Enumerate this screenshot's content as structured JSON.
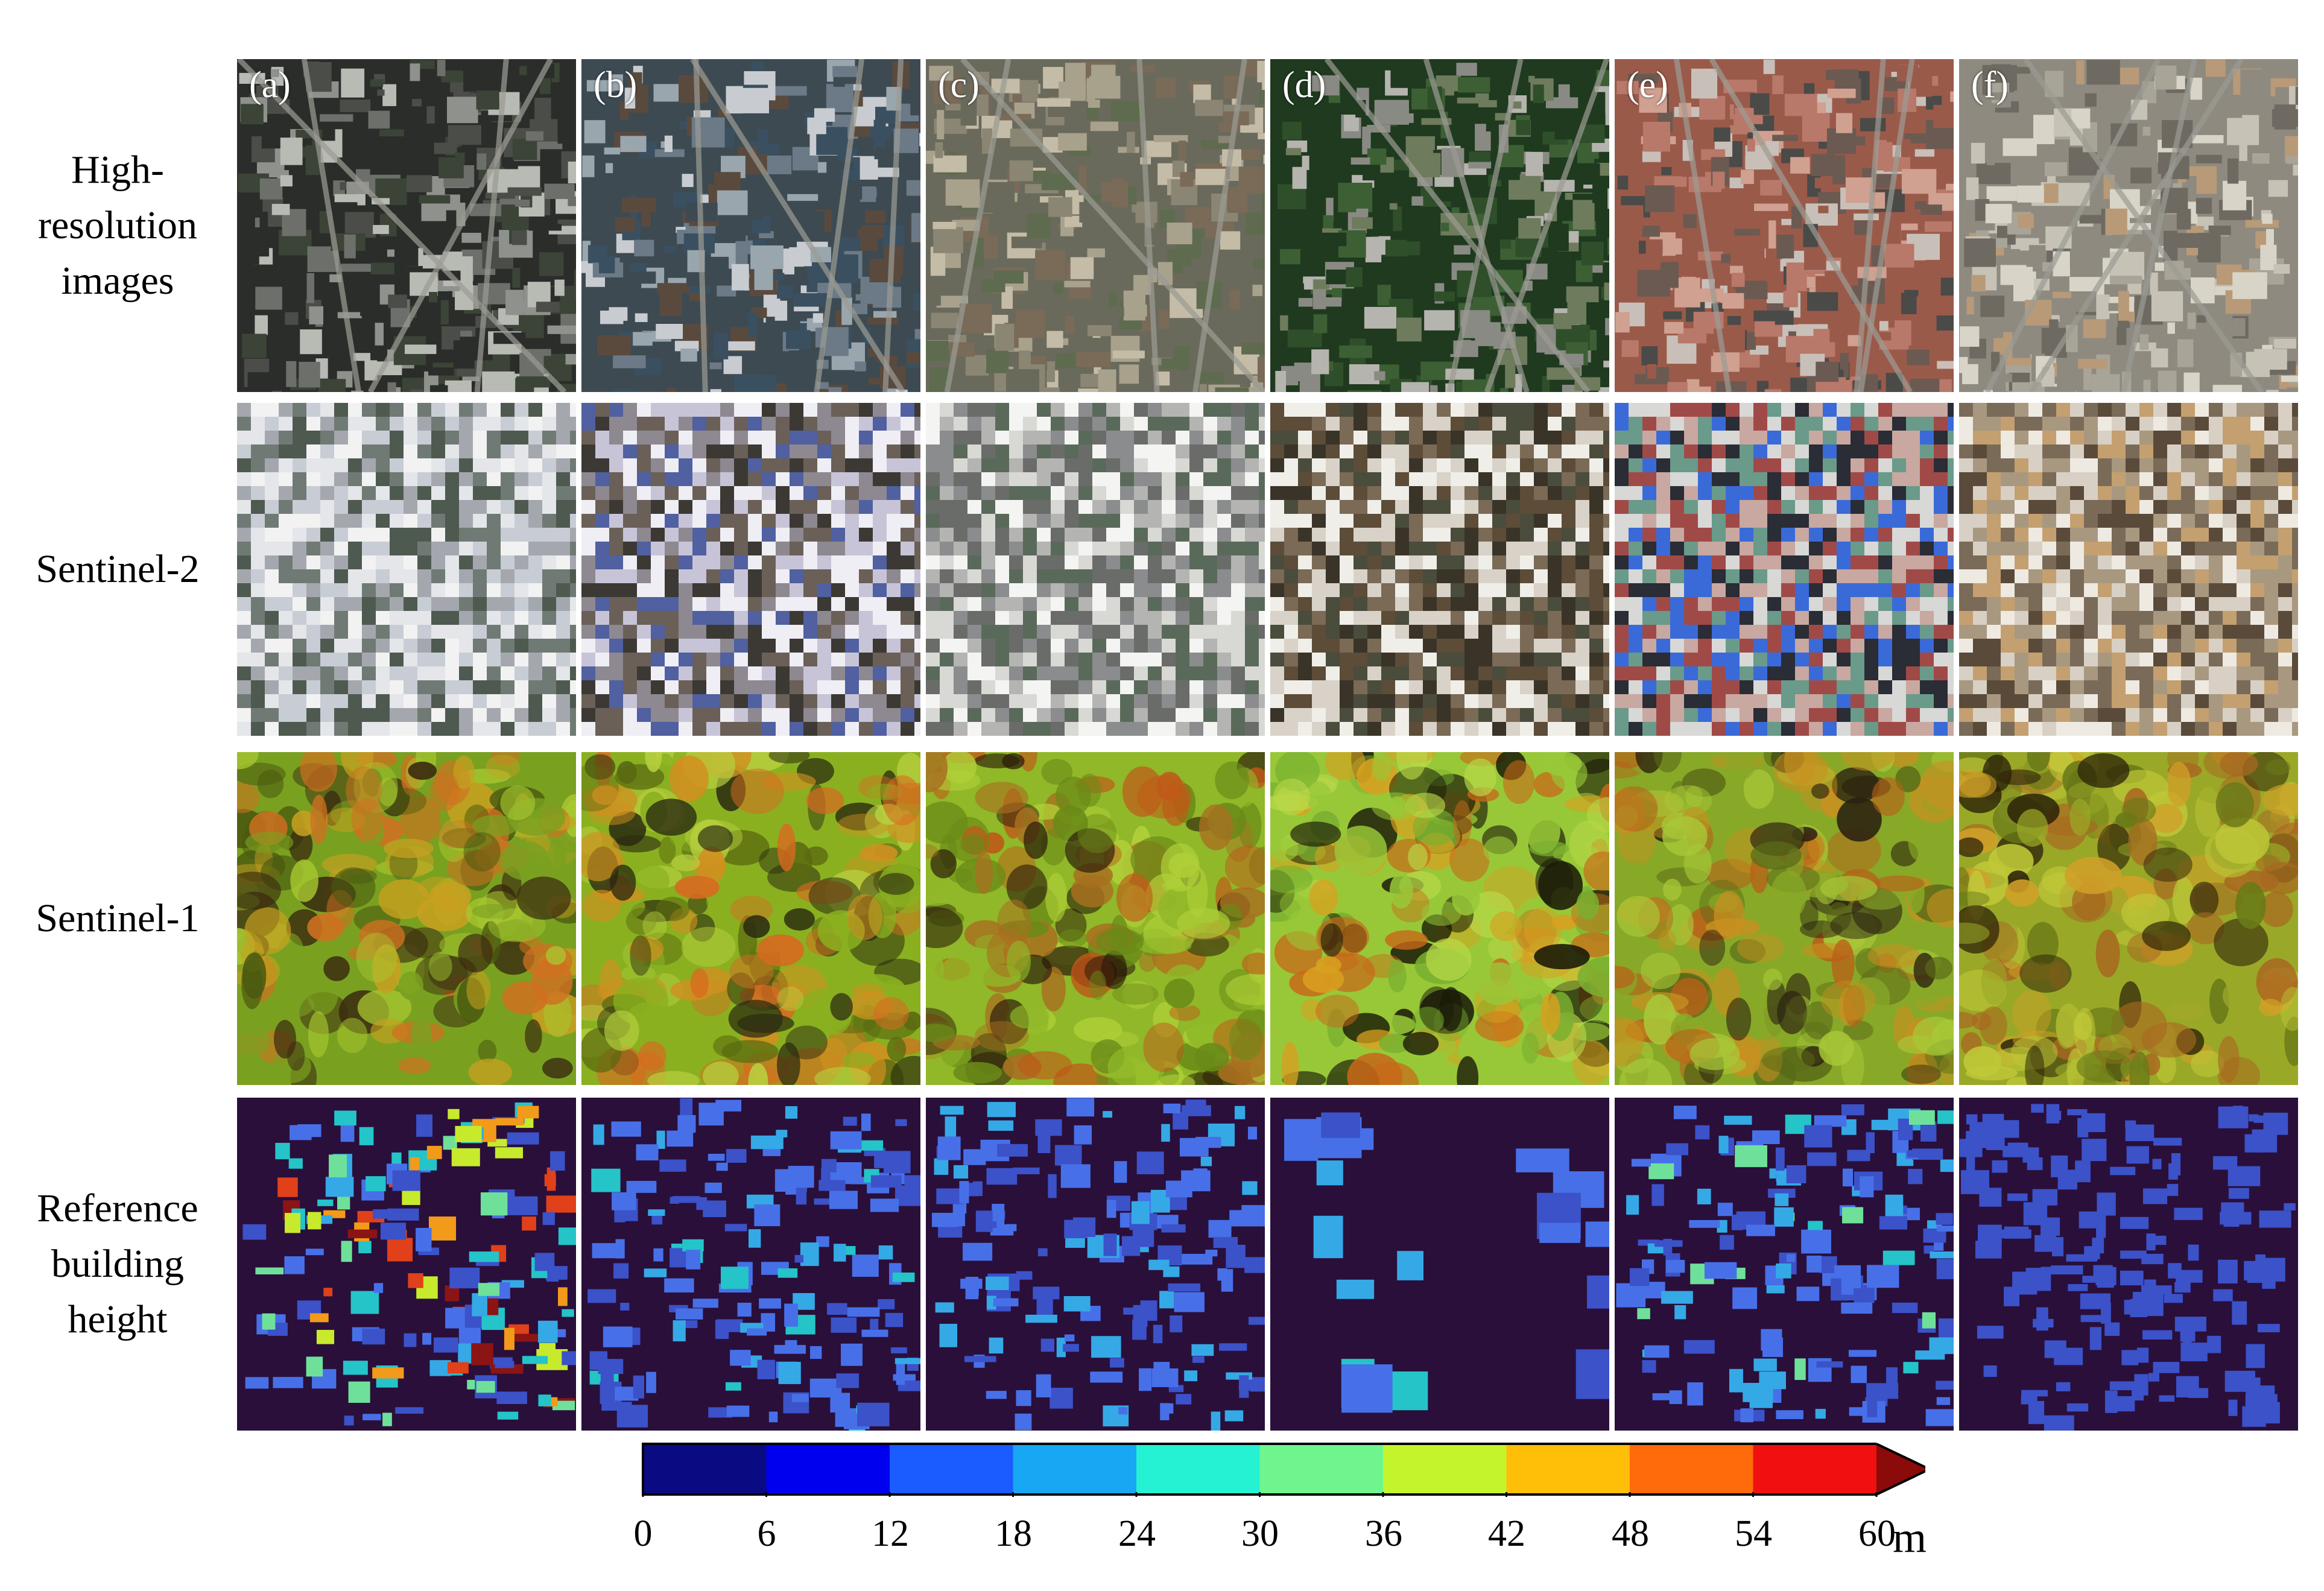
{
  "row_labels": [
    {
      "lines": [
        "High-",
        "resolution",
        "images"
      ]
    },
    {
      "lines": [
        "Sentinel-2"
      ]
    },
    {
      "lines": [
        "Sentinel-1"
      ]
    },
    {
      "lines": [
        "Reference",
        "building",
        "height"
      ]
    }
  ],
  "columns": [
    "(a)",
    "(b)",
    "(c)",
    "(d)",
    "(e)",
    "(f)"
  ],
  "colorbar": {
    "ticks": [
      "0",
      "6",
      "12",
      "18",
      "24",
      "30",
      "36",
      "42",
      "48",
      "54",
      "60"
    ],
    "unit": "m",
    "colors": [
      "#0a0a82",
      "#0000ee",
      "#1a5cff",
      "#17a7f3",
      "#24f2d2",
      "#6ff58e",
      "#c4f52c",
      "#ffbe08",
      "#ff6a0a",
      "#f01010",
      "#8b0a0a"
    ]
  }
}
